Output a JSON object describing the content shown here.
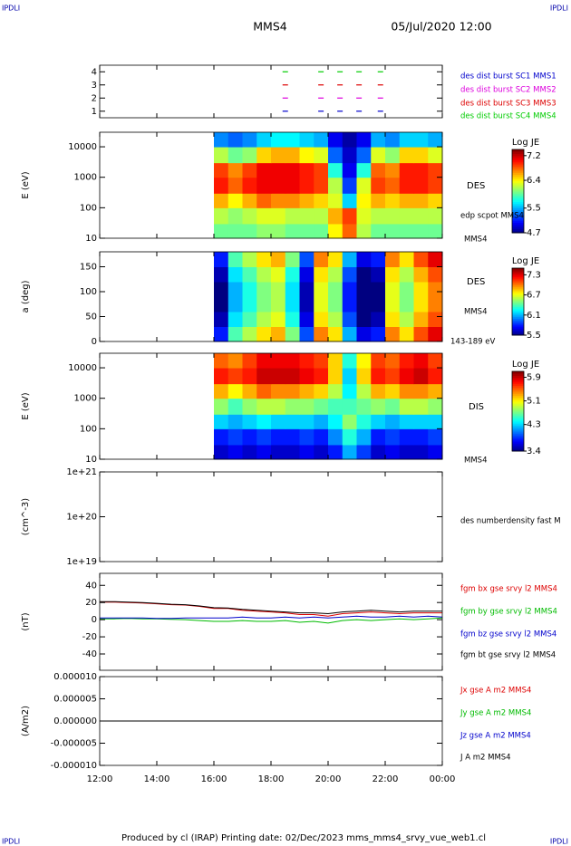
{
  "header": {
    "corner_left": "IPDLI",
    "corner_right": "IPDLI",
    "spacecraft": "MMS4",
    "date": "05/Jul/2020 12:00"
  },
  "footer": {
    "text": "Produced by cl (IRAP)   Printing date: 02/Dec/2023   mms_mms4_srvy_vue_web1.cl",
    "corner_left": "IPDLI",
    "corner_right": "IPDLI"
  },
  "chart_data": [
    {
      "type": "burst",
      "ylim": [
        0.5,
        4.5
      ],
      "yticks": [
        1,
        2,
        3,
        4
      ],
      "series": [
        {
          "name": "des dist burst SC1 MMS1",
          "color": "#0000cc",
          "x": [
            "18:30",
            "19:45",
            "20:25",
            "21:05",
            "21:50"
          ],
          "values": [
            1,
            1,
            1,
            1,
            1
          ]
        },
        {
          "name": "des dist burst SC2 MMS2",
          "color": "#dd00dd",
          "x": [
            "18:30",
            "19:45",
            "20:25",
            "21:05",
            "21:50"
          ],
          "values": [
            2,
            2,
            2,
            2,
            2
          ]
        },
        {
          "name": "des dist burst SC3 MMS3",
          "color": "#dd0000",
          "x": [
            "18:30",
            "19:45",
            "20:25",
            "21:05",
            "21:50"
          ],
          "values": [
            3,
            3,
            3,
            3,
            3
          ]
        },
        {
          "name": "des dist burst SC4 MMS4",
          "color": "#00cc00",
          "x": [
            "18:30",
            "19:45",
            "20:25",
            "21:05",
            "21:50"
          ],
          "values": [
            4,
            4,
            4,
            4,
            4
          ]
        }
      ]
    },
    {
      "type": "spectrogram",
      "ylabel": "E (eV)",
      "log": true,
      "ylim": [
        10,
        30000
      ],
      "yticks": [
        10,
        100,
        1000,
        10000
      ],
      "annotations": [
        "DES",
        "edp scpot MMS4",
        "MMS4"
      ],
      "colorbar": {
        "title": "Log JE",
        "clim": [
          4.7,
          7.4
        ],
        "ticks": [
          7.2,
          6.4,
          5.5,
          4.7
        ]
      },
      "x": [
        "16:00",
        "16:30",
        "17:00",
        "17:30",
        "18:00",
        "18:30",
        "19:00",
        "19:30",
        "20:00",
        "20:30",
        "21:00",
        "21:30",
        "22:00",
        "22:30",
        "23:00",
        "23:30",
        "00:00"
      ],
      "bins": [
        10,
        30,
        100,
        300,
        1000,
        3000,
        10000,
        30000
      ],
      "z": [
        [
          6.0,
          6.0,
          6.0,
          6.1,
          6.1,
          6.0,
          6.0,
          6.0,
          6.4,
          6.8,
          6.2,
          6.0,
          6.0,
          6.0,
          6.0,
          6.0
        ],
        [
          6.2,
          6.1,
          6.2,
          6.3,
          6.3,
          6.2,
          6.2,
          6.2,
          6.6,
          6.9,
          6.3,
          6.2,
          6.2,
          6.2,
          6.2,
          6.2
        ],
        [
          6.6,
          6.4,
          6.6,
          6.8,
          6.7,
          6.7,
          6.6,
          6.5,
          6.3,
          5.6,
          6.4,
          6.6,
          6.5,
          6.6,
          6.6,
          6.5
        ],
        [
          7.0,
          6.8,
          7.0,
          7.1,
          7.1,
          7.1,
          7.0,
          6.9,
          6.2,
          5.2,
          6.3,
          6.9,
          6.8,
          7.0,
          7.0,
          6.9
        ],
        [
          6.9,
          6.7,
          6.9,
          7.1,
          7.1,
          7.1,
          7.0,
          6.9,
          5.8,
          5.0,
          5.8,
          6.8,
          6.7,
          7.0,
          7.0,
          6.9
        ],
        [
          6.2,
          6.0,
          6.1,
          6.5,
          6.6,
          6.6,
          6.4,
          6.3,
          5.3,
          4.9,
          5.3,
          6.3,
          6.1,
          6.5,
          6.5,
          6.3
        ],
        [
          5.4,
          5.3,
          5.4,
          5.6,
          5.7,
          5.7,
          5.6,
          5.5,
          5.0,
          4.8,
          5.0,
          5.5,
          5.4,
          5.6,
          5.6,
          5.5
        ]
      ]
    },
    {
      "type": "spectrogram",
      "ylabel": "a (deg)",
      "log": false,
      "ylim": [
        0,
        180
      ],
      "yticks": [
        0,
        50,
        100,
        150
      ],
      "annotations": [
        "DES",
        "MMS4",
        "143-189 eV"
      ],
      "colorbar": {
        "title": "Log JE",
        "clim": [
          5.5,
          7.5
        ],
        "ticks": [
          7.3,
          6.7,
          6.1,
          5.5
        ]
      },
      "x": [
        "16:00",
        "16:30",
        "17:00",
        "17:30",
        "18:00",
        "18:30",
        "19:00",
        "19:30",
        "20:00",
        "20:30",
        "21:00",
        "21:30",
        "22:00",
        "22:30",
        "23:00",
        "23:30",
        "00:00"
      ],
      "bins": [
        0,
        30,
        60,
        90,
        120,
        150,
        180
      ],
      "z": [
        [
          5.8,
          6.4,
          6.6,
          6.8,
          6.9,
          6.5,
          5.9,
          7.0,
          6.8,
          6.1,
          5.7,
          5.8,
          7.0,
          6.8,
          7.1,
          7.3
        ],
        [
          5.6,
          6.2,
          6.4,
          6.6,
          6.7,
          6.3,
          5.7,
          6.8,
          6.6,
          5.9,
          5.5,
          5.6,
          6.8,
          6.6,
          6.9,
          7.1
        ],
        [
          5.5,
          6.1,
          6.3,
          6.5,
          6.6,
          6.2,
          5.6,
          6.7,
          6.5,
          5.8,
          5.4,
          5.5,
          6.7,
          6.5,
          6.8,
          7.0
        ],
        [
          5.5,
          6.1,
          6.3,
          6.5,
          6.6,
          6.2,
          5.6,
          6.7,
          6.5,
          5.8,
          5.4,
          5.5,
          6.7,
          6.5,
          6.8,
          7.0
        ],
        [
          5.6,
          6.2,
          6.4,
          6.6,
          6.7,
          6.3,
          5.7,
          6.8,
          6.6,
          5.9,
          5.5,
          5.6,
          6.8,
          6.6,
          6.9,
          7.1
        ],
        [
          5.8,
          6.4,
          6.6,
          6.8,
          6.9,
          6.5,
          5.9,
          7.0,
          6.8,
          6.1,
          5.7,
          5.8,
          7.0,
          6.8,
          7.1,
          7.3
        ]
      ]
    },
    {
      "type": "spectrogram",
      "ylabel": "E (eV)",
      "log": true,
      "ylim": [
        10,
        30000
      ],
      "yticks": [
        10,
        100,
        1000,
        10000
      ],
      "annotations": [
        "DIS",
        "MMS4"
      ],
      "colorbar": {
        "title": "Log JE",
        "clim": [
          3.4,
          6.1
        ],
        "ticks": [
          5.9,
          5.1,
          4.3,
          3.4
        ]
      },
      "x": [
        "16:00",
        "16:30",
        "17:00",
        "17:30",
        "18:00",
        "18:30",
        "19:00",
        "19:30",
        "20:00",
        "20:30",
        "21:00",
        "21:30",
        "22:00",
        "22:30",
        "23:00",
        "23:30",
        "00:00"
      ],
      "bins": [
        10,
        30,
        100,
        300,
        1000,
        3000,
        10000,
        30000
      ],
      "z": [
        [
          3.6,
          3.7,
          3.6,
          3.7,
          3.6,
          3.6,
          3.7,
          3.6,
          3.8,
          4.2,
          3.9,
          3.6,
          3.7,
          3.6,
          3.6,
          3.7
        ],
        [
          3.8,
          3.9,
          3.8,
          3.9,
          3.8,
          3.8,
          3.9,
          3.8,
          4.1,
          4.5,
          4.2,
          3.8,
          3.9,
          3.8,
          3.8,
          3.9
        ],
        [
          4.3,
          4.2,
          4.3,
          4.4,
          4.3,
          4.3,
          4.3,
          4.2,
          4.4,
          4.8,
          4.5,
          4.3,
          4.2,
          4.3,
          4.3,
          4.3
        ],
        [
          4.8,
          4.6,
          4.8,
          4.9,
          4.9,
          4.8,
          4.8,
          4.7,
          4.6,
          4.6,
          4.7,
          4.8,
          4.7,
          4.9,
          4.9,
          4.8
        ],
        [
          5.3,
          5.1,
          5.3,
          5.5,
          5.4,
          5.4,
          5.3,
          5.2,
          4.9,
          4.4,
          4.9,
          5.3,
          5.2,
          5.4,
          5.4,
          5.3
        ],
        [
          5.7,
          5.6,
          5.7,
          5.9,
          5.9,
          5.9,
          5.8,
          5.7,
          5.2,
          4.3,
          5.2,
          5.7,
          5.6,
          5.8,
          5.9,
          5.7
        ],
        [
          5.5,
          5.4,
          5.6,
          5.8,
          5.8,
          5.8,
          5.7,
          5.6,
          5.2,
          4.5,
          5.1,
          5.6,
          5.5,
          5.7,
          5.8,
          5.6
        ]
      ]
    },
    {
      "type": "empty",
      "ylabel": "(cm^-3)",
      "log": true,
      "ylim": [
        1e+19,
        1e+21
      ],
      "yticks": [
        {
          "value": 1e+19,
          "label": "1e+19"
        },
        {
          "value": 1e+20,
          "label": "1e+20"
        },
        {
          "value": 1e+21,
          "label": "1e+21"
        }
      ],
      "annotations": [
        "des numberdensity fast M"
      ]
    },
    {
      "type": "line",
      "ylabel": "(nT)",
      "ylim": [
        -59,
        54
      ],
      "yticks": [
        -40,
        -20,
        0,
        20,
        40
      ],
      "x": [
        "12:00",
        "12:30",
        "13:00",
        "13:30",
        "14:00",
        "14:30",
        "15:00",
        "15:30",
        "16:00",
        "16:30",
        "17:00",
        "17:30",
        "18:00",
        "18:30",
        "19:00",
        "19:30",
        "20:00",
        "20:30",
        "21:00",
        "21:30",
        "22:00",
        "22:30",
        "23:00",
        "23:30",
        "00:00"
      ],
      "series": [
        {
          "name": "fgm bx gse srvy l2 MMS4",
          "color": "#dd0000",
          "values": [
            20.5,
            20.5,
            20,
            19.5,
            18.5,
            17.5,
            17,
            15.5,
            13,
            13,
            11,
            10,
            9,
            8,
            6,
            6,
            4,
            7,
            8,
            9,
            8,
            7,
            8,
            8,
            8
          ]
        },
        {
          "name": "fgm by gse srvy l2 MMS4",
          "color": "#00bb00",
          "values": [
            1,
            1,
            1.5,
            1,
            1,
            0.5,
            0,
            -1,
            -2,
            -2,
            -1,
            -2,
            -2,
            -1,
            -3,
            -2,
            -4,
            -1,
            0,
            -1,
            0,
            1,
            0,
            1,
            2
          ]
        },
        {
          "name": "fgm bz gse srvy l2 MMS4",
          "color": "#0000cc",
          "values": [
            2,
            2,
            2,
            2,
            1.5,
            1.5,
            2,
            2,
            2,
            2,
            3,
            2,
            2,
            3,
            2,
            3,
            2,
            3,
            4,
            3,
            3,
            4,
            3,
            4,
            3
          ]
        },
        {
          "name": "fgm bt gse srvy l2 MMS4",
          "color": "#000000",
          "values": [
            21,
            21,
            20.5,
            20,
            19,
            18,
            17.5,
            16,
            14,
            13.5,
            12,
            11,
            10,
            9,
            8,
            8,
            7,
            9,
            10,
            11,
            10,
            9,
            10,
            10,
            10
          ]
        }
      ]
    },
    {
      "type": "line",
      "ylabel": "(A/m2)",
      "ylim": [
        -1e-05,
        1e-05
      ],
      "yticks": [
        {
          "value": -1e-05,
          "label": "-0.000010"
        },
        {
          "value": -5e-06,
          "label": "-0.000005"
        },
        {
          "value": 0,
          "label": "0.000000"
        },
        {
          "value": 5e-06,
          "label": "0.000005"
        },
        {
          "value": 1e-05,
          "label": "0.000010"
        }
      ],
      "xlim": [
        "12:00",
        "00:00"
      ],
      "xticks": [
        "12:00",
        "14:00",
        "16:00",
        "18:00",
        "20:00",
        "22:00",
        "00:00"
      ],
      "x": [
        "12:00",
        "12:30",
        "13:00",
        "13:30",
        "14:00",
        "14:30",
        "15:00",
        "15:30",
        "16:00",
        "16:30",
        "17:00",
        "17:30",
        "18:00",
        "18:30",
        "19:00",
        "19:30",
        "20:00",
        "20:30",
        "21:00",
        "21:30",
        "22:00",
        "22:30",
        "23:00",
        "23:30",
        "00:00"
      ],
      "series": [
        {
          "name": "Jx gse A m2 MMS4",
          "color": "#dd0000",
          "values": [
            0,
            0,
            0,
            0,
            0,
            0,
            0,
            0,
            0,
            0,
            0,
            0,
            0,
            0,
            0,
            0,
            0,
            0,
            0,
            0,
            0,
            0,
            0,
            0,
            0
          ]
        },
        {
          "name": "Jy gse A m2 MMS4",
          "color": "#00bb00",
          "values": [
            0,
            0,
            0,
            0,
            0,
            0,
            0,
            0,
            0,
            0,
            0,
            0,
            0,
            0,
            0,
            0,
            0,
            0,
            0,
            0,
            0,
            0,
            0,
            0,
            0
          ]
        },
        {
          "name": "Jz gse A m2 MMS4",
          "color": "#0000cc",
          "values": [
            0,
            0,
            0,
            0,
            0,
            0,
            0,
            0,
            0,
            0,
            0,
            0,
            0,
            0,
            0,
            0,
            0,
            0,
            0,
            0,
            0,
            0,
            0,
            0,
            0
          ]
        },
        {
          "name": "J A m2 MMS4",
          "color": "#000000",
          "values": [
            0,
            0,
            0,
            0,
            0,
            0,
            0,
            0,
            0,
            0,
            0,
            0,
            0,
            0,
            0,
            0,
            0,
            0,
            0,
            0,
            0,
            0,
            0,
            0,
            0
          ]
        }
      ]
    }
  ]
}
